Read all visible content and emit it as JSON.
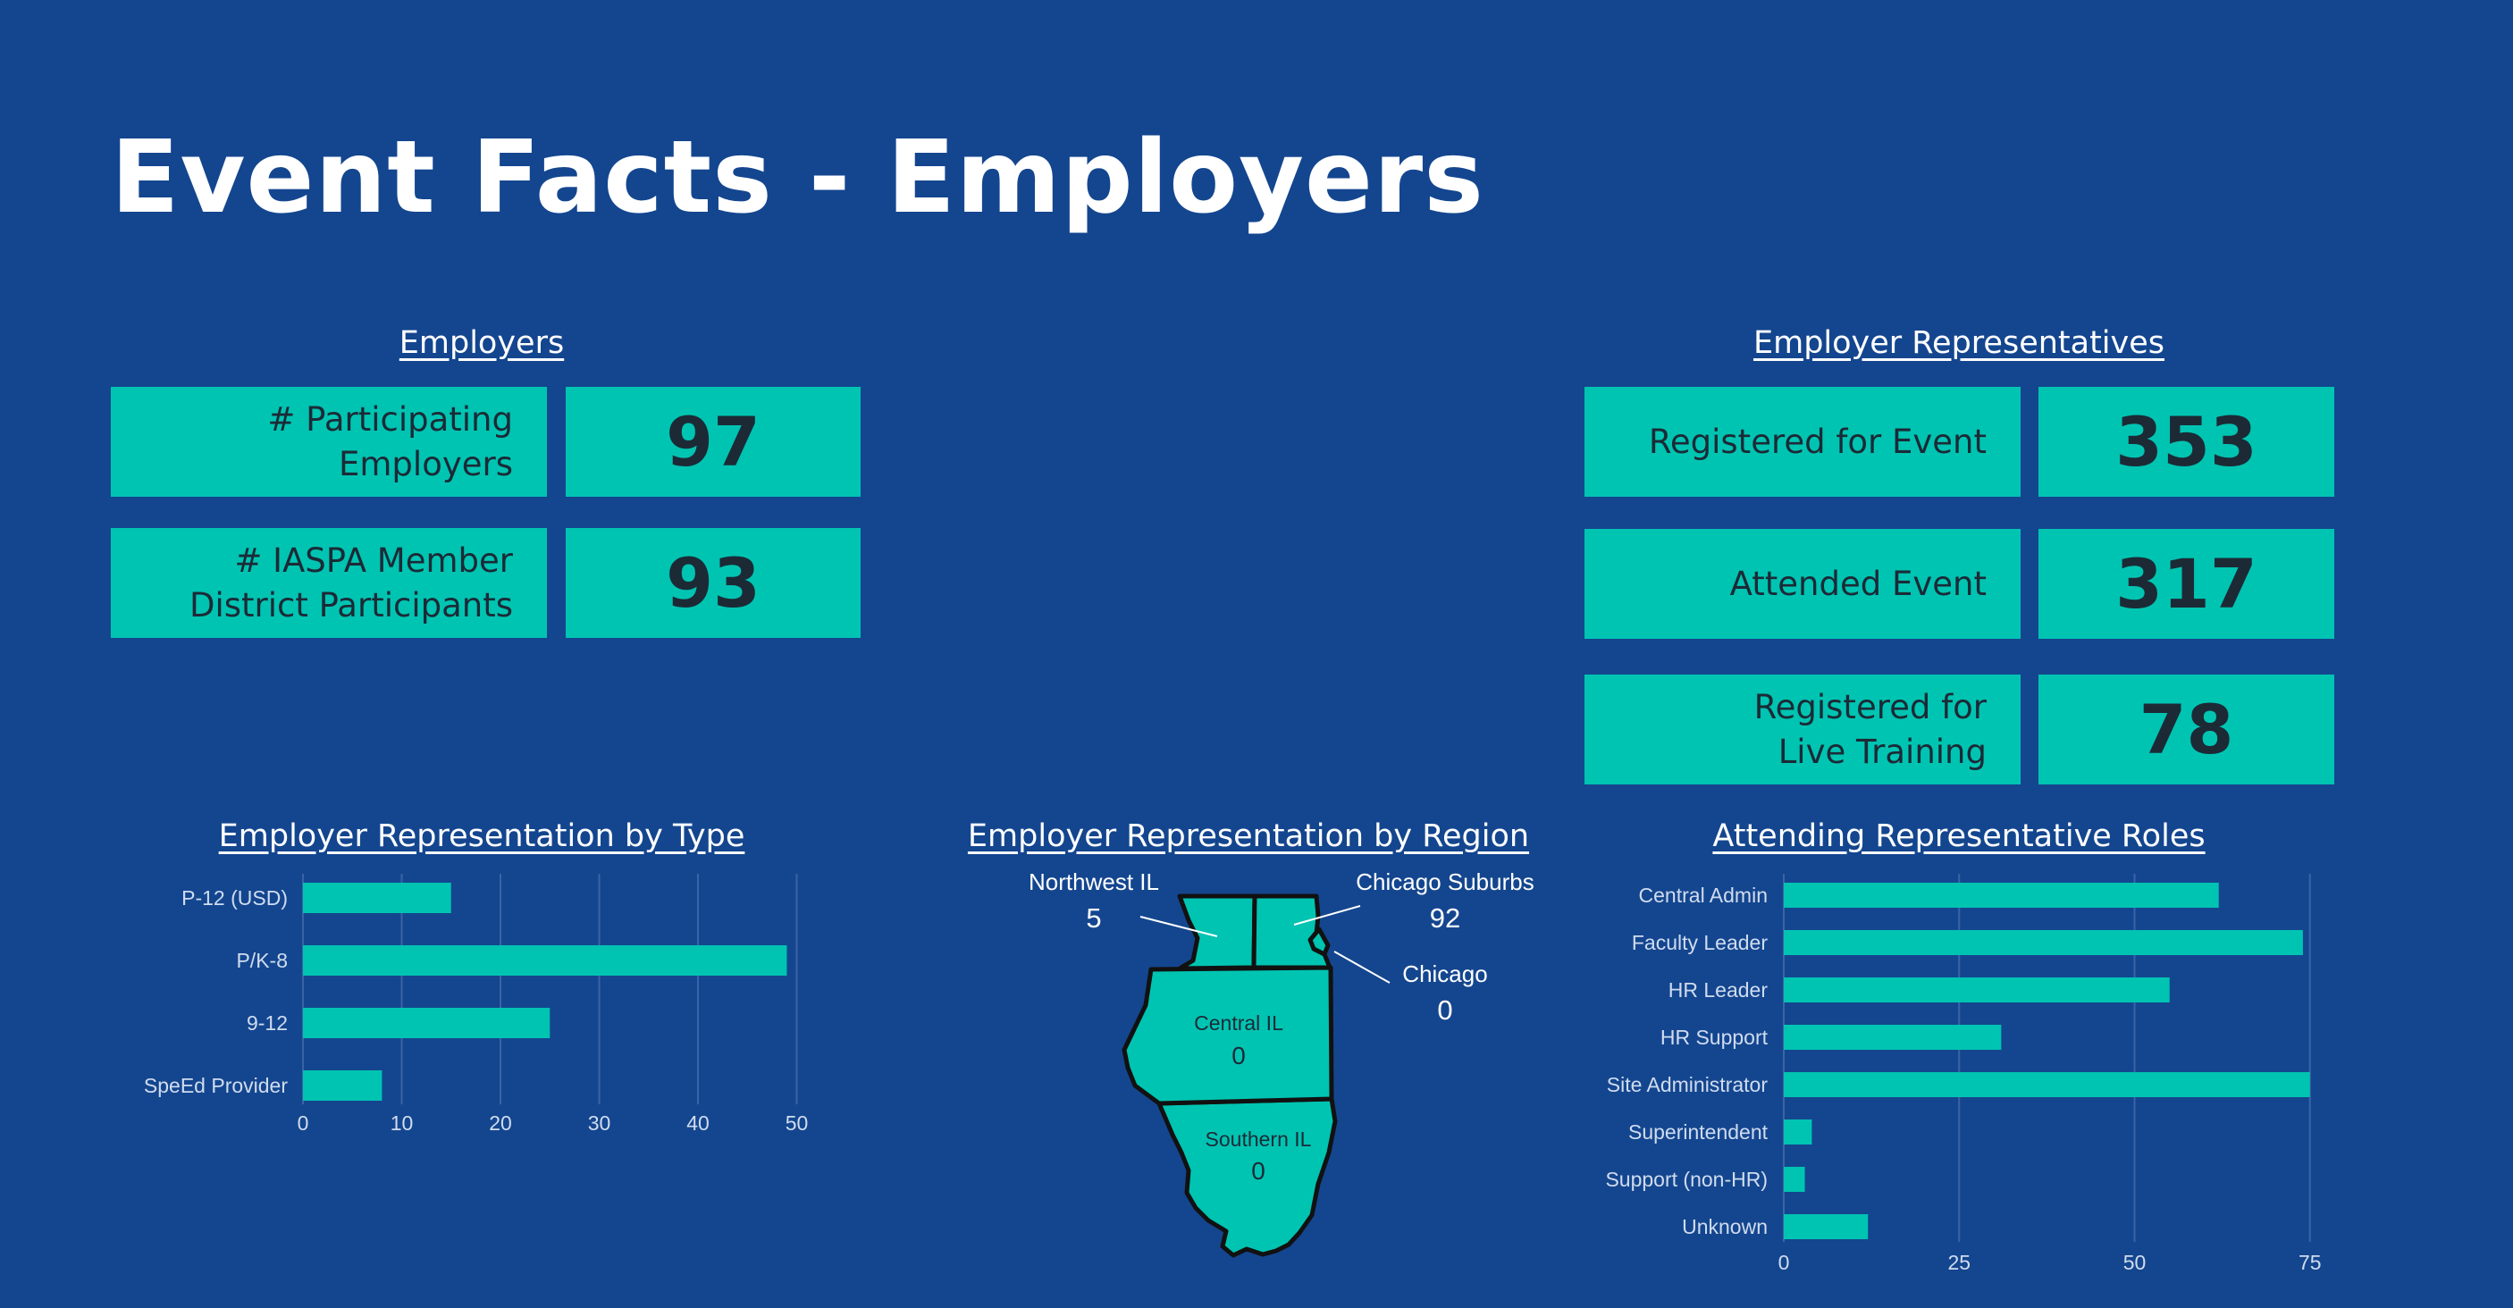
{
  "page_title": "Event Facts - Employers",
  "employers": {
    "heading": "Employers",
    "stats": [
      {
        "label": "# Participating\nEmployers",
        "value": "97"
      },
      {
        "label": "# IASPA Member\nDistrict Participants",
        "value": "93"
      }
    ]
  },
  "representatives": {
    "heading": "Employer Representatives",
    "stats": [
      {
        "label": "Registered for Event",
        "value": "353"
      },
      {
        "label": "Attended Event",
        "value": "317"
      },
      {
        "label": "Registered for\nLive Training",
        "value": "78"
      }
    ]
  },
  "region_map": {
    "heading": "Employer Representation by Region",
    "regions": [
      {
        "name": "Northwest IL",
        "value": "5"
      },
      {
        "name": "Chicago Suburbs",
        "value": "92"
      },
      {
        "name": "Chicago",
        "value": "0"
      },
      {
        "name": "Central IL",
        "value": "0"
      },
      {
        "name": "Southern IL",
        "value": "0"
      }
    ],
    "fill_color": "#00c4b2"
  },
  "colors": {
    "background": "#14468f",
    "accent": "#00c4b2",
    "dark_text": "#1c2a36",
    "grid": "#3a63a6"
  },
  "chart_data": [
    {
      "type": "bar",
      "orientation": "horizontal",
      "title": "Employer Representation by Type",
      "categories": [
        "P-12 (USD)",
        "P/K-8",
        "9-12",
        "SpeEd Provider"
      ],
      "values": [
        15,
        49,
        25,
        8
      ],
      "xlim": [
        0,
        55
      ],
      "xticks": [
        0,
        10,
        20,
        30,
        40,
        50
      ],
      "grid": true,
      "color": "#00c4b2"
    },
    {
      "type": "bar",
      "orientation": "horizontal",
      "title": "Attending Representative Roles",
      "categories": [
        "Central Admin",
        "Faculty Leader",
        "HR Leader",
        "HR Support",
        "Site Administrator",
        "Superintendent",
        "Support (non-HR)",
        "Unknown"
      ],
      "values": [
        62,
        74,
        55,
        31,
        75,
        4,
        3,
        12
      ],
      "xlim": [
        0,
        80
      ],
      "xticks": [
        0,
        25,
        50,
        75
      ],
      "grid": true,
      "color": "#00c4b2"
    }
  ]
}
